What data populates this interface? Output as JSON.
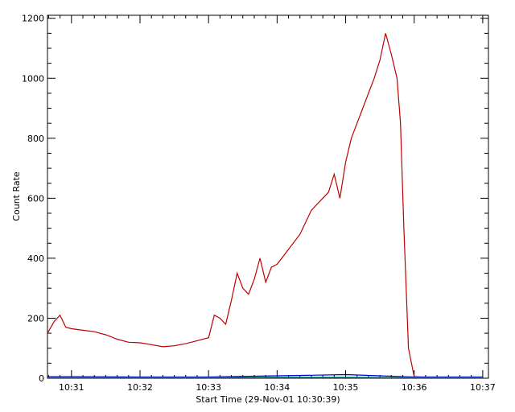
{
  "chart_data": {
    "type": "line",
    "title": "",
    "xlabel": "Start Time (29-Nov-01 10:30:39)",
    "ylabel": "Count Rate",
    "x_unit": "time of day",
    "xlim": [
      "10:30:39",
      "10:37:05"
    ],
    "ylim": [
      0,
      1210
    ],
    "x_ticks": [
      "10:31",
      "10:32",
      "10:33",
      "10:34",
      "10:35",
      "10:36",
      "10:37"
    ],
    "y_ticks": [
      0,
      200,
      400,
      600,
      800,
      1000,
      1200
    ],
    "grid": false,
    "legend": "none",
    "series": [
      {
        "color": "#c00000",
        "x": [
          "10:30:39",
          "10:30:45",
          "10:30:50",
          "10:30:55",
          "10:31:00",
          "10:31:10",
          "10:31:20",
          "10:31:30",
          "10:31:40",
          "10:31:50",
          "10:32:00",
          "10:32:10",
          "10:32:20",
          "10:32:30",
          "10:32:40",
          "10:32:50",
          "10:33:00",
          "10:33:05",
          "10:33:10",
          "10:33:15",
          "10:33:20",
          "10:33:25",
          "10:33:30",
          "10:33:35",
          "10:33:40",
          "10:33:45",
          "10:33:50",
          "10:33:55",
          "10:34:00",
          "10:34:10",
          "10:34:20",
          "10:34:30",
          "10:34:40",
          "10:34:45",
          "10:34:50",
          "10:34:55",
          "10:35:00",
          "10:35:05",
          "10:35:10",
          "10:35:15",
          "10:35:20",
          "10:35:25",
          "10:35:30",
          "10:35:35",
          "10:35:40",
          "10:35:45",
          "10:35:48",
          "10:35:51",
          "10:35:55",
          "10:36:00",
          "10:36:10",
          "10:36:30",
          "10:37:00"
        ],
        "values": [
          150,
          190,
          210,
          170,
          165,
          160,
          155,
          145,
          130,
          120,
          118,
          112,
          105,
          108,
          115,
          125,
          135,
          210,
          200,
          180,
          260,
          350,
          300,
          280,
          330,
          400,
          320,
          370,
          380,
          430,
          480,
          560,
          600,
          620,
          680,
          600,
          720,
          800,
          850,
          900,
          950,
          1000,
          1060,
          1150,
          1080,
          1000,
          850,
          500,
          100,
          5,
          3,
          2,
          2
        ]
      },
      {
        "color": "#0000cc",
        "x": [
          "10:30:39",
          "10:31:00",
          "10:32:00",
          "10:33:00",
          "10:34:00",
          "10:34:30",
          "10:35:00",
          "10:35:30",
          "10:36:00",
          "10:37:00"
        ],
        "values": [
          5,
          5,
          4,
          4,
          8,
          10,
          12,
          8,
          4,
          4
        ]
      },
      {
        "color": "#008888",
        "x": [
          "10:30:39",
          "10:31:00",
          "10:32:00",
          "10:33:00",
          "10:34:00",
          "10:35:00",
          "10:36:00",
          "10:37:00"
        ],
        "values": [
          2,
          2,
          2,
          2,
          3,
          3,
          2,
          2
        ]
      }
    ]
  }
}
